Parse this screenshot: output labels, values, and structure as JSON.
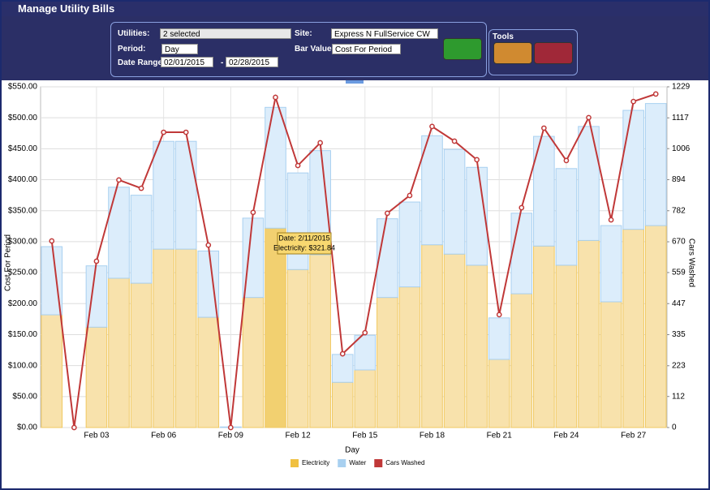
{
  "window": {
    "title": "Manage Utility Bills"
  },
  "filters": {
    "utilities_label": "Utilities:",
    "utilities_value": "2 selected",
    "period_label": "Period:",
    "period_value": "Day",
    "date_range_label": "Date Range:",
    "start_date": "02/01/2015",
    "separator": "-",
    "end_date": "02/28/2015",
    "site_label": "Site:",
    "site_value": "Express N FullService CW",
    "bar_value_label": "Bar Value:",
    "bar_value_value": "Cost For Period"
  },
  "tools": {
    "title": "Tools"
  },
  "chart_data": {
    "type": "bar",
    "stacked": true,
    "x_label": "Day",
    "y_label": "Cost For Period",
    "y2_label": "Cars Washed",
    "categories": [
      null,
      null,
      "Feb 03",
      null,
      null,
      "Feb 06",
      null,
      null,
      "Feb 09",
      null,
      null,
      "Feb 12",
      null,
      null,
      "Feb 15",
      null,
      null,
      "Feb 18",
      null,
      null,
      "Feb 21",
      null,
      null,
      "Feb 24",
      null,
      null,
      "Feb 27",
      null
    ],
    "series": [
      {
        "name": "Electricity",
        "color": "#f0c040",
        "values": [
          182,
          0,
          162,
          241,
          233,
          288,
          288,
          178,
          0,
          210,
          321.84,
          255,
          279,
          73,
          93,
          210,
          227,
          295,
          280,
          262,
          110,
          216,
          293,
          262,
          302,
          203,
          320,
          326
        ]
      },
      {
        "name": "Water",
        "color": "#a8d0f0",
        "values": [
          110,
          0,
          99,
          147,
          142,
          174,
          174,
          107,
          1,
          128,
          195,
          156,
          168,
          45,
          56,
          127,
          137,
          176,
          169,
          158,
          67,
          130,
          177,
          156,
          184,
          123,
          192,
          197
        ]
      },
      {
        "name": "Cars Washed",
        "color": "#c03838",
        "type": "line",
        "axis": "y2",
        "values": [
          673,
          0,
          600,
          893,
          863,
          1065,
          1065,
          658,
          0,
          776,
          1191,
          945,
          1027,
          266,
          342,
          773,
          837,
          1086,
          1033,
          966,
          407,
          793,
          1080,
          963,
          1118,
          749,
          1176,
          1203
        ]
      }
    ],
    "ylim": [
      0,
      550
    ],
    "yticks": [
      {
        "value": 0,
        "label": "$0.00"
      },
      {
        "value": 50,
        "label": "$50.00"
      },
      {
        "value": 100,
        "label": "$100.00"
      },
      {
        "value": 150,
        "label": "$150.00"
      },
      {
        "value": 200,
        "label": "$200.00"
      },
      {
        "value": 250,
        "label": "$250.00"
      },
      {
        "value": 300,
        "label": "$300.00"
      },
      {
        "value": 350,
        "label": "$350.00"
      },
      {
        "value": 400,
        "label": "$400.00"
      },
      {
        "value": 450,
        "label": "$450.00"
      },
      {
        "value": 500,
        "label": "$500.00"
      },
      {
        "value": 550,
        "label": "$550.00"
      }
    ],
    "y2lim": [
      0,
      1229
    ],
    "y2ticks": [
      0,
      112,
      223,
      335,
      447,
      559,
      670,
      782,
      894,
      1006,
      1117,
      1229
    ],
    "grid": true,
    "legend": "bottom",
    "tooltip": {
      "index": 10,
      "lines": [
        "Date: 2/11/2015",
        "Electricity: $321.84"
      ]
    }
  }
}
